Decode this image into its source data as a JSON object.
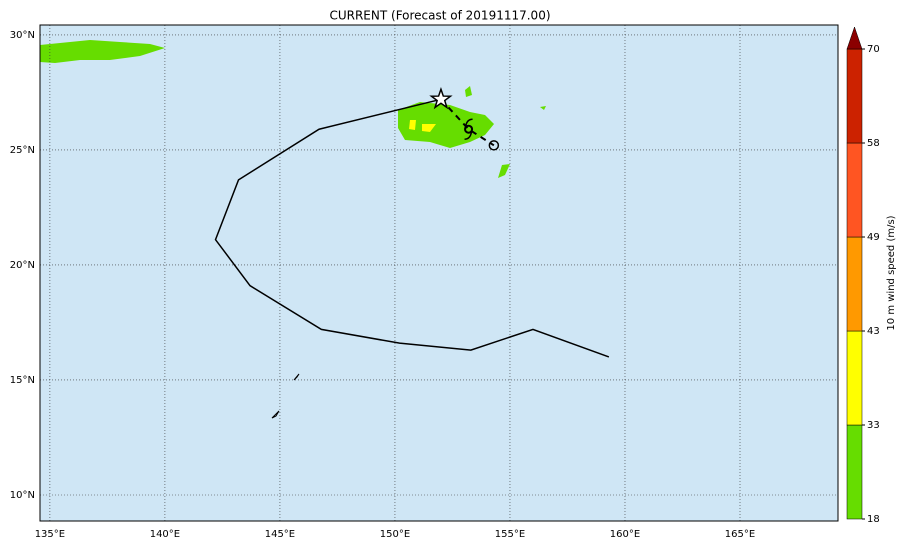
{
  "chart_data": {
    "type": "map",
    "title": "CURRENT (Forecast of 20191117.00)",
    "xlim": [
      134.57,
      169.26
    ],
    "ylim": [
      8.87,
      30.43
    ],
    "xticks": [
      {
        "value": 135,
        "label": "135°E"
      },
      {
        "value": 140,
        "label": "140°E"
      },
      {
        "value": 145,
        "label": "145°E"
      },
      {
        "value": 150,
        "label": "150°E"
      },
      {
        "value": 155,
        "label": "155°E"
      },
      {
        "value": 160,
        "label": "160°E"
      },
      {
        "value": 165,
        "label": "165°E"
      }
    ],
    "yticks": [
      {
        "value": 10,
        "label": "10°N"
      },
      {
        "value": 15,
        "label": "15°N"
      },
      {
        "value": 20,
        "label": "20°N"
      },
      {
        "value": 25,
        "label": "25°N"
      },
      {
        "value": 30,
        "label": "30°N"
      }
    ],
    "grid": true,
    "track": {
      "lon": [
        159.3,
        156.0,
        153.3,
        150.2,
        146.8,
        143.7,
        142.2,
        143.2,
        146.7,
        152.0
      ],
      "lat": [
        16.0,
        17.2,
        16.3,
        16.6,
        17.2,
        19.1,
        21.1,
        23.7,
        25.9,
        27.2
      ],
      "color": "#000000"
    },
    "forecast": {
      "lon": [
        152.0,
        153.2,
        154.3
      ],
      "lat": [
        27.2,
        25.9,
        25.2
      ],
      "color": "#000000"
    },
    "colorbar": {
      "label": "10 m wind speed (m/s)",
      "levels": [
        18,
        33,
        43,
        49,
        58,
        70
      ],
      "colors": [
        "#66dd00",
        "#ffff00",
        "#ff9900",
        "#ff5522",
        "#cc2200"
      ],
      "extend_color": "#8b0000"
    }
  }
}
